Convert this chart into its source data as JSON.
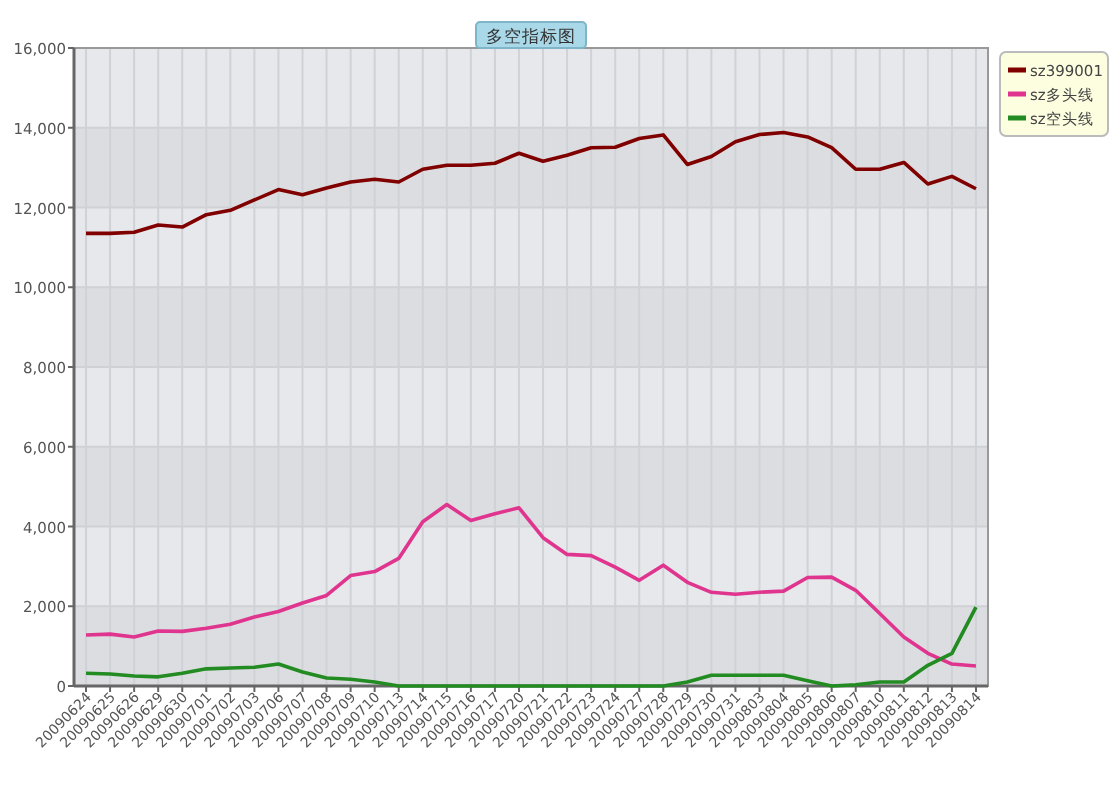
{
  "chart_data": {
    "type": "line",
    "title": "多空指标图",
    "categories": [
      "20090624",
      "20090625",
      "20090626",
      "20090629",
      "20090630",
      "20090701",
      "20090702",
      "20090703",
      "20090706",
      "20090707",
      "20090708",
      "20090709",
      "20090710",
      "20090713",
      "20090714",
      "20090715",
      "20090716",
      "20090717",
      "20090720",
      "20090721",
      "20090722",
      "20090723",
      "20090724",
      "20090727",
      "20090728",
      "20090729",
      "20090730",
      "20090731",
      "20090803",
      "20090804",
      "20090805",
      "20090806",
      "20090807",
      "20090810",
      "20090811",
      "20090812",
      "20090813",
      "20090814"
    ],
    "series": [
      {
        "name": "sz399001",
        "color": "#800000",
        "values": [
          11350,
          11350,
          11380,
          11560,
          11510,
          11820,
          11930,
          12190,
          12450,
          12320,
          12490,
          12640,
          12710,
          12640,
          12960,
          13060,
          13060,
          13110,
          13360,
          13160,
          13310,
          13500,
          13510,
          13730,
          13820,
          13080,
          13280,
          13650,
          13830,
          13880,
          13770,
          13500,
          12960,
          12960,
          13130,
          12590,
          12780,
          12470
        ]
      },
      {
        "name": "sz多头线",
        "color": "#e0358f",
        "values": [
          1280,
          1300,
          1230,
          1380,
          1370,
          1450,
          1550,
          1730,
          1870,
          2080,
          2270,
          2770,
          2870,
          3200,
          4120,
          4550,
          4150,
          4320,
          4470,
          3720,
          3300,
          3270,
          2980,
          2650,
          3030,
          2600,
          2350,
          2300,
          2350,
          2380,
          2720,
          2730,
          2400,
          1820,
          1230,
          820,
          550,
          500
        ]
      },
      {
        "name": "sz空头线",
        "color": "#228b22",
        "values": [
          320,
          300,
          250,
          230,
          320,
          430,
          450,
          470,
          550,
          350,
          200,
          170,
          100,
          0,
          0,
          0,
          0,
          0,
          0,
          0,
          0,
          0,
          0,
          0,
          0,
          100,
          270,
          270,
          270,
          270,
          130,
          0,
          30,
          100,
          100,
          520,
          820,
          1980
        ]
      }
    ],
    "ylim": [
      0,
      16000
    ],
    "yticks": [
      0,
      {
        "value": 2000,
        "label": "2,000"
      },
      {
        "value": 4000,
        "label": "4,000"
      },
      {
        "value": 6000,
        "label": "6,000"
      },
      {
        "value": 8000,
        "label": "8,000"
      },
      {
        "value": 10000,
        "label": "10,000"
      },
      {
        "value": 12000,
        "label": "12,000"
      },
      {
        "value": 14000,
        "label": "14,000"
      },
      {
        "value": 16000,
        "label": "16,000"
      }
    ],
    "grid": true,
    "legend": "top right"
  }
}
